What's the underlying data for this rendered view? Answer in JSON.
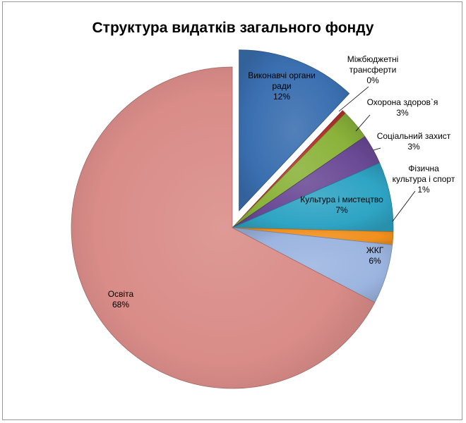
{
  "chart_data": {
    "type": "pie",
    "title": "Структура видатків загального фонду",
    "slices": [
      {
        "label_lines": [
          "Виконавчі органи",
          "ради"
        ],
        "percent_label": "12%",
        "value": 12,
        "color": "#3a6fb0",
        "exploded": true
      },
      {
        "label_lines": [
          "Міжбюджетні",
          "трансферти"
        ],
        "percent_label": "0%",
        "value": 0.4,
        "color": "#b8342c",
        "exploded": false
      },
      {
        "label_lines": [
          "Охорона здоров`я"
        ],
        "percent_label": "3%",
        "value": 3,
        "color": "#8bb33a",
        "exploded": false
      },
      {
        "label_lines": [
          "Соціальний захист"
        ],
        "percent_label": "3%",
        "value": 3,
        "color": "#6b4a96",
        "exploded": false
      },
      {
        "label_lines": [
          "Культура і мистецтво"
        ],
        "percent_label": "7%",
        "value": 7,
        "color": "#2fa4c4",
        "exploded": false
      },
      {
        "label_lines": [
          "Фізична",
          "культура і спорт"
        ],
        "percent_label": "1%",
        "value": 1.3,
        "color": "#f0901e",
        "exploded": false
      },
      {
        "label_lines": [
          "ЖКГ"
        ],
        "percent_label": "6%",
        "value": 6,
        "color": "#9cb5e0",
        "exploded": false
      },
      {
        "label_lines": [
          "Освіта"
        ],
        "percent_label": "68%",
        "value": 67.3,
        "color": "#d98c88",
        "exploded": false
      }
    ]
  }
}
